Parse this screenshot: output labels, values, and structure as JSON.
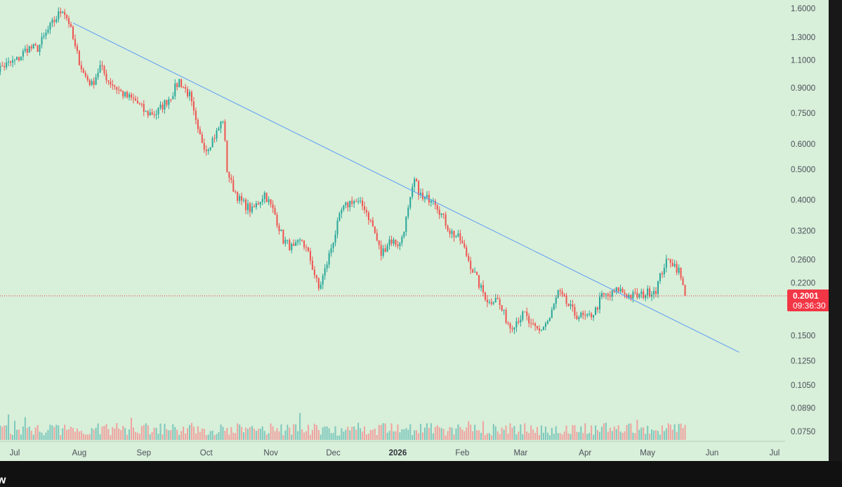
{
  "chart_data": {
    "type": "candlestick",
    "title": "",
    "xlabel": "",
    "ylabel": "",
    "y_scale": "log",
    "ylim": [
      0.07,
      1.9
    ],
    "grid": false,
    "y_ticks": [
      "1.6000",
      "1.3000",
      "1.1000",
      "0.9000",
      "0.7500",
      "0.6000",
      "0.5000",
      "0.4000",
      "0.3200",
      "0.2600",
      "0.2200",
      "0.1500",
      "0.1250",
      "0.1050",
      "0.0890",
      "0.0750"
    ],
    "x_ticks": [
      {
        "label": "Jul",
        "date": "2025-07-01"
      },
      {
        "label": "Aug",
        "date": "2025-08-01"
      },
      {
        "label": "Sep",
        "date": "2025-09-01"
      },
      {
        "label": "Oct",
        "date": "2025-10-01"
      },
      {
        "label": "Nov",
        "date": "2025-11-01"
      },
      {
        "label": "Dec",
        "date": "2025-12-01"
      },
      {
        "label": "2026",
        "date": "2026-01-01"
      },
      {
        "label": "Feb",
        "date": "2026-02-01"
      },
      {
        "label": "Mar",
        "date": "2026-03-01"
      },
      {
        "label": "Apr",
        "date": "2026-04-01"
      },
      {
        "label": "May",
        "date": "2026-05-01"
      },
      {
        "label": "Jun",
        "date": "2026-06-01"
      },
      {
        "label": "Jul",
        "date": "2026-07-01"
      }
    ],
    "price_path": [
      [
        "2025-06-20",
        1.0
      ],
      [
        "2025-06-25",
        1.05
      ],
      [
        "2025-07-02",
        1.1
      ],
      [
        "2025-07-07",
        1.2
      ],
      [
        "2025-07-12",
        1.2
      ],
      [
        "2025-07-18",
        1.4
      ],
      [
        "2025-07-24",
        1.6
      ],
      [
        "2025-07-27",
        1.45
      ],
      [
        "2025-07-30",
        1.2
      ],
      [
        "2025-08-03",
        1.0
      ],
      [
        "2025-08-07",
        0.92
      ],
      [
        "2025-08-11",
        1.05
      ],
      [
        "2025-08-15",
        0.95
      ],
      [
        "2025-08-19",
        0.9
      ],
      [
        "2025-08-23",
        0.85
      ],
      [
        "2025-08-28",
        0.82
      ],
      [
        "2025-09-02",
        0.75
      ],
      [
        "2025-09-07",
        0.75
      ],
      [
        "2025-09-14",
        0.85
      ],
      [
        "2025-09-18",
        0.95
      ],
      [
        "2025-09-23",
        0.85
      ],
      [
        "2025-09-27",
        0.65
      ],
      [
        "2025-10-01",
        0.58
      ],
      [
        "2025-10-06",
        0.65
      ],
      [
        "2025-10-09",
        0.72
      ],
      [
        "2025-10-11",
        0.5
      ],
      [
        "2025-10-13",
        0.45
      ],
      [
        "2025-10-17",
        0.4
      ],
      [
        "2025-10-23",
        0.37
      ],
      [
        "2025-10-29",
        0.42
      ],
      [
        "2025-11-03",
        0.36
      ],
      [
        "2025-11-07",
        0.3
      ],
      [
        "2025-11-12",
        0.28
      ],
      [
        "2025-11-16",
        0.3
      ],
      [
        "2025-11-20",
        0.26
      ],
      [
        "2025-11-24",
        0.21
      ],
      [
        "2025-11-27",
        0.24
      ],
      [
        "2025-12-01",
        0.3
      ],
      [
        "2025-12-05",
        0.37
      ],
      [
        "2025-12-10",
        0.4
      ],
      [
        "2025-12-16",
        0.38
      ],
      [
        "2025-12-20",
        0.33
      ],
      [
        "2025-12-24",
        0.27
      ],
      [
        "2025-12-28",
        0.3
      ],
      [
        "2026-01-02",
        0.29
      ],
      [
        "2026-01-06",
        0.37
      ],
      [
        "2026-01-09",
        0.46
      ],
      [
        "2026-01-13",
        0.4
      ],
      [
        "2026-01-18",
        0.41
      ],
      [
        "2026-01-22",
        0.36
      ],
      [
        "2026-01-26",
        0.32
      ],
      [
        "2026-01-31",
        0.3
      ],
      [
        "2026-02-05",
        0.25
      ],
      [
        "2026-02-10",
        0.21
      ],
      [
        "2026-02-14",
        0.19
      ],
      [
        "2026-02-17",
        0.2
      ],
      [
        "2026-02-20",
        0.18
      ],
      [
        "2026-02-24",
        0.16
      ],
      [
        "2026-02-28",
        0.17
      ],
      [
        "2026-03-03",
        0.175
      ],
      [
        "2026-03-06",
        0.16
      ],
      [
        "2026-03-10",
        0.155
      ],
      [
        "2026-03-15",
        0.17
      ],
      [
        "2026-03-19",
        0.205
      ],
      [
        "2026-03-23",
        0.19
      ],
      [
        "2026-03-27",
        0.175
      ],
      [
        "2026-04-02",
        0.17
      ],
      [
        "2026-04-06",
        0.18
      ],
      [
        "2026-04-09",
        0.2
      ],
      [
        "2026-04-13",
        0.2
      ],
      [
        "2026-04-17",
        0.21
      ],
      [
        "2026-04-22",
        0.2
      ],
      [
        "2026-04-27",
        0.2
      ],
      [
        "2026-05-01",
        0.205
      ],
      [
        "2026-05-05",
        0.21
      ],
      [
        "2026-05-09",
        0.25
      ],
      [
        "2026-05-12",
        0.26
      ],
      [
        "2026-05-16",
        0.24
      ],
      [
        "2026-05-19",
        0.2001
      ]
    ],
    "trendline": [
      [
        "2025-07-29",
        1.44
      ],
      [
        "2026-06-14",
        0.133
      ]
    ],
    "last_price": "0.2001",
    "countdown": "09:36:30",
    "colors": {
      "up": "#26a69a",
      "down": "#ef5350",
      "trendline": "#5b9cf6",
      "background": "#d8efd9",
      "badge": "#f23645"
    }
  },
  "footer_text": "w"
}
